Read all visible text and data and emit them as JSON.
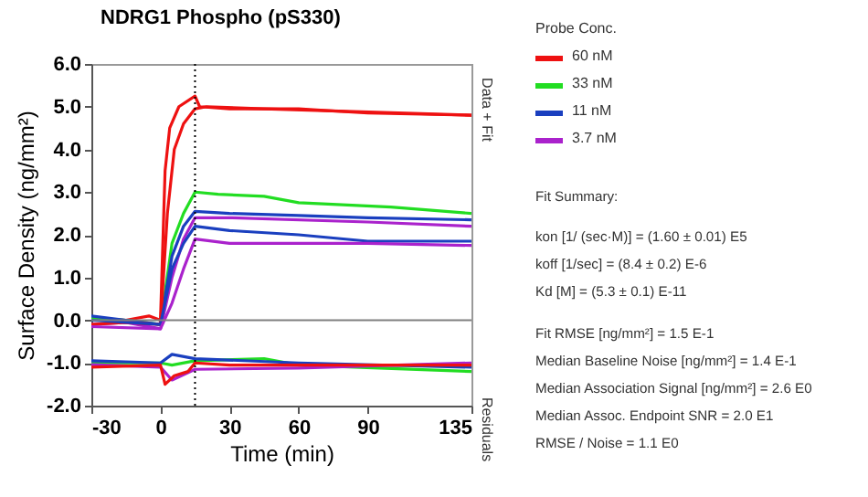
{
  "chart_data": {
    "type": "line",
    "title": "NDRG1 Phospho (pS330)",
    "xlabel": "Time (min)",
    "ylabel": "Surface Density (ng/mm²)",
    "legend_title": "Probe Conc.",
    "xlim": [
      -30,
      135
    ],
    "xticks": [
      -30,
      0,
      30,
      60,
      90,
      135
    ],
    "ylim": [
      -2,
      6
    ],
    "yticks": [
      {
        "value": -2,
        "label": "-2.0"
      },
      {
        "value": -1,
        "label": "-1.0"
      },
      {
        "value": 0,
        "label": "0.0"
      },
      {
        "value": 1,
        "label": "1.0"
      },
      {
        "value": 2,
        "label": "2.0"
      },
      {
        "value": 3,
        "label": "3.0"
      },
      {
        "value": 4,
        "label": "4.0"
      },
      {
        "value": 5,
        "label": "5.0"
      },
      {
        "value": 6,
        "label": "6.0"
      }
    ],
    "grid": false,
    "legend": "right",
    "marker": "none",
    "line_style": "solid",
    "ref_lines": [
      {
        "axis": "y",
        "value": 0,
        "color": "#808080",
        "line_style": "solid"
      },
      {
        "axis": "x",
        "value": 15,
        "color": "#000000",
        "line_style": "dotted"
      }
    ],
    "series": [
      {
        "name": "60 nM",
        "color": "#ee1111",
        "x": [
          -30,
          -15,
          -5,
          0,
          2,
          4,
          8,
          15,
          17,
          30,
          60,
          90,
          135
        ],
        "values": [
          0.05,
          0.0,
          0.1,
          0.0,
          3.5,
          4.5,
          5.0,
          5.25,
          5.0,
          4.95,
          4.95,
          4.85,
          4.8
        ]
      },
      {
        "name": "33 nM",
        "color": "#22dd22",
        "x": [
          -30,
          -15,
          0,
          5,
          10,
          15,
          25,
          45,
          60,
          100,
          135
        ],
        "values": [
          0.05,
          0.0,
          -0.1,
          1.8,
          2.5,
          3.0,
          2.95,
          2.9,
          2.75,
          2.65,
          2.5
        ]
      },
      {
        "name": "11 nM",
        "color": "#1a3fbf",
        "x": [
          -30,
          -15,
          0,
          5,
          10,
          15,
          30,
          60,
          90,
          135
        ],
        "values": [
          0.1,
          0.0,
          -0.1,
          1.5,
          2.2,
          2.55,
          2.5,
          2.45,
          2.4,
          2.35
        ]
      },
      {
        "name": "3.7 nM",
        "color": "#aa22cc",
        "x": [
          -30,
          -15,
          0,
          5,
          10,
          15,
          30,
          90,
          135
        ],
        "values": [
          -0.1,
          -0.05,
          -0.2,
          1.0,
          1.9,
          2.4,
          2.4,
          2.3,
          2.2
        ]
      },
      {
        "color": "#ee1111",
        "x": [
          -30,
          -15,
          0,
          3,
          6,
          10,
          15,
          20,
          45,
          135
        ],
        "values": [
          -0.1,
          -0.05,
          -0.1,
          2.5,
          4.0,
          4.6,
          4.95,
          5.0,
          4.95,
          4.8
        ]
      },
      {
        "color": "#1a3fbf",
        "x": [
          -30,
          0,
          5,
          10,
          15,
          30,
          60,
          90,
          135
        ],
        "values": [
          0.0,
          -0.1,
          1.2,
          1.8,
          2.2,
          2.1,
          2.0,
          1.85,
          1.85
        ]
      },
      {
        "color": "#aa22cc",
        "x": [
          -30,
          0,
          5,
          10,
          15,
          30,
          90,
          135
        ],
        "values": [
          -0.15,
          -0.2,
          0.4,
          1.2,
          1.9,
          1.8,
          1.8,
          1.75
        ]
      },
      {
        "color": "#22dd22",
        "x": [
          -30,
          0,
          5,
          15,
          45,
          60,
          135
        ],
        "values": [
          -1.0,
          -1.0,
          -1.05,
          -0.95,
          -0.9,
          -1.05,
          -1.2
        ]
      },
      {
        "color": "#1a3fbf",
        "x": [
          -30,
          0,
          5,
          15,
          60,
          135
        ],
        "values": [
          -0.95,
          -1.0,
          -0.8,
          -0.9,
          -1.0,
          -1.1
        ]
      },
      {
        "color": "#aa22cc",
        "x": [
          -30,
          0,
          5,
          15,
          60,
          135
        ],
        "values": [
          -1.04,
          -1.1,
          -1.4,
          -1.15,
          -1.12,
          -1.0
        ]
      },
      {
        "color": "#ee1111",
        "x": [
          -30,
          0,
          2,
          6,
          12,
          15,
          30,
          135
        ],
        "values": [
          -1.1,
          -1.05,
          -1.5,
          -1.3,
          -1.2,
          -1.0,
          -1.05,
          -1.05
        ]
      }
    ],
    "annotations": [
      "Data + Fit",
      "Residuals",
      "Fit Summary:",
      "kon  [1/ (sec·M)]  =   (1.60 ± 0.01) E5",
      "koff  [1/sec]  =   (8.4 ± 0.2) E-6",
      "Kd  [M]  =   (5.3 ± 0.1) E-11",
      "Fit RMSE [ng/mm²]  =   1.5 E-1",
      "Median Baseline Noise [ng/mm²]  =   1.4 E-1",
      "Median Association Signal [ng/mm²]  =   2.6 E0",
      "Median Assoc. Endpoint SNR  =   2.0 E1",
      "RMSE / Noise  =   1.1 E0"
    ]
  }
}
